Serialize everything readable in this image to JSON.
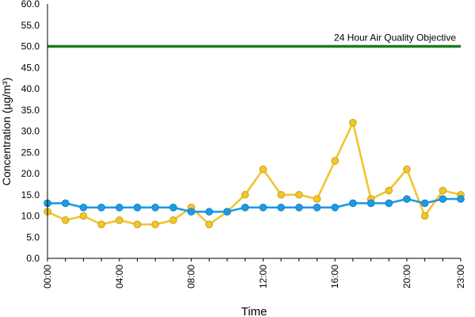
{
  "chart_data": {
    "type": "line",
    "xlabel": "Time",
    "ylabel": "Concentration (µg/m³)",
    "ylim": [
      0,
      60
    ],
    "y_ticks": [
      "0.0",
      "5.0",
      "10.0",
      "15.0",
      "20.0",
      "25.0",
      "30.0",
      "35.0",
      "40.0",
      "45.0",
      "50.0",
      "55.0",
      "60.0"
    ],
    "x_ticks": [
      "00:00",
      "04:00",
      "08:00",
      "12:00",
      "16:00",
      "20:00",
      "23:00"
    ],
    "x_tick_hours": [
      0,
      4,
      8,
      12,
      16,
      20,
      23
    ],
    "x_hours": [
      0,
      1,
      2,
      3,
      4,
      5,
      6,
      7,
      8,
      9,
      10,
      11,
      12,
      13,
      14,
      15,
      16,
      17,
      18,
      19,
      20,
      21,
      22,
      23
    ],
    "grid": false,
    "series": [
      {
        "color": "#f2c52e",
        "stroke": "#c9a21a",
        "values": [
          11,
          9,
          10,
          8,
          9,
          8,
          8,
          9,
          12,
          8,
          11,
          15,
          21,
          15,
          15,
          14,
          23,
          32,
          14,
          16,
          21,
          10,
          16,
          15
        ]
      },
      {
        "color": "#1e9be6",
        "stroke": "#1a7fc2",
        "values": [
          13,
          13,
          12,
          12,
          12,
          12,
          12,
          12,
          11,
          11,
          11,
          12,
          12,
          12,
          12,
          12,
          12,
          13,
          13,
          13,
          14,
          13,
          14,
          14
        ]
      }
    ],
    "reference_line": {
      "value": 50,
      "label": "24 Hour Air Quality Objective",
      "color": "#1f7a1f"
    }
  }
}
